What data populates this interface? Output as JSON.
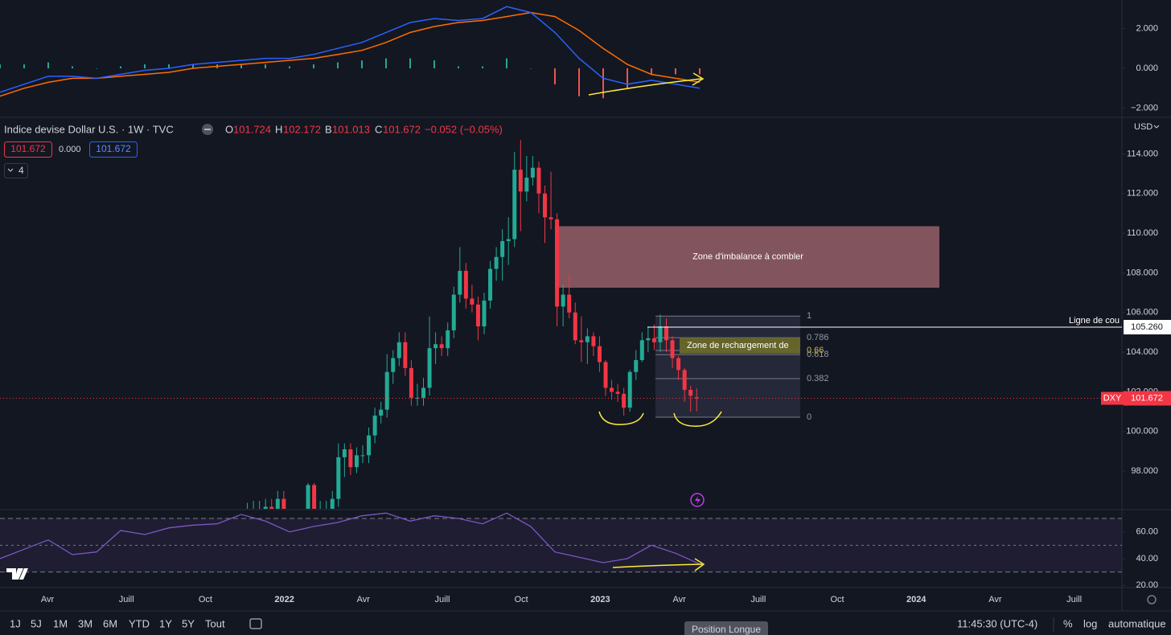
{
  "header": {
    "symbol": "Indice devise Dollar U.S. · 1W · TVC",
    "o_label": "O",
    "h_label": "H",
    "l_label": "B",
    "c_label": "C",
    "change": "−0.052 (−0.05%)",
    "zero_badge": "0.000",
    "indicator_count": "4",
    "currency": "USD"
  },
  "toolbar": {
    "ranges": [
      "1J",
      "5J",
      "1M",
      "3M",
      "6M",
      "YTD",
      "1Y",
      "5Y",
      "Tout"
    ],
    "time": "11:45:30 (UTC-4)",
    "percent": "%",
    "log": "log",
    "auto": "automatique",
    "tooltip": "Position Longue"
  },
  "chart_data": [
    {
      "type": "macd",
      "macd": [
        -1.2,
        -0.8,
        -0.4,
        -0.4,
        -0.5,
        -0.3,
        -0.1,
        0.0,
        0.2,
        0.3,
        0.4,
        0.5,
        0.5,
        0.7,
        1.0,
        1.3,
        1.8,
        2.3,
        2.5,
        2.4,
        2.5,
        3.1,
        2.8,
        1.8,
        0.5,
        -0.5,
        -0.8,
        -0.6,
        -0.8,
        -1.0
      ],
      "signal": [
        -1.4,
        -1.0,
        -0.7,
        -0.5,
        -0.5,
        -0.4,
        -0.3,
        -0.2,
        0.0,
        0.1,
        0.2,
        0.3,
        0.4,
        0.5,
        0.7,
        0.9,
        1.3,
        1.8,
        2.1,
        2.3,
        2.4,
        2.6,
        2.8,
        2.6,
        1.9,
        1.0,
        0.2,
        -0.3,
        -0.5,
        -0.7
      ],
      "histogram": [
        0.2,
        0.2,
        0.3,
        0.1,
        0.0,
        0.1,
        0.2,
        0.2,
        0.2,
        0.2,
        0.2,
        0.2,
        0.1,
        0.2,
        0.3,
        0.4,
        0.5,
        0.5,
        0.4,
        0.1,
        0.1,
        0.5,
        0.0,
        -0.8,
        -1.4,
        -1.5,
        -1.0,
        -0.3,
        -0.3,
        -0.3
      ],
      "macd_color": "#2962ff",
      "signal_color": "#ff6d00",
      "up_color": "#26a69a",
      "down_color": "#ef5350",
      "ylim": [
        -2.42,
        3.43
      ],
      "yticks": [
        {
          "value": 2,
          "label": "2.000"
        },
        {
          "value": 0,
          "label": "0.000"
        },
        {
          "value": -2,
          "label": "−2.000"
        }
      ]
    },
    {
      "type": "candlestick",
      "open": [
        94.9,
        95.1,
        96.0,
        96.1,
        96.1,
        96.2,
        96.0,
        96.6,
        95.7,
        95.7,
        95.2,
        95.6,
        97.3,
        95.5,
        96.1,
        96.1,
        96.6,
        98.7,
        99.1,
        98.2,
        98.8,
        98.8,
        99.8,
        100.8,
        101.1,
        103.0,
        103.7,
        104.5,
        103.2,
        101.7,
        101.7,
        102.2,
        104.2,
        104.4,
        104.2,
        105.1,
        106.9,
        108.1,
        106.7,
        106.4,
        105.3,
        106.6,
        108.2,
        108.8,
        109.6,
        109.7,
        113.2,
        112.1,
        112.8,
        113.3,
        112.0,
        110.8,
        110.7,
        106.3,
        106.9,
        106.0,
        104.6,
        104.5,
        104.8,
        104.3,
        103.5,
        102.2,
        102.0,
        101.9,
        101.2,
        103.0,
        103.6,
        104.6,
        104.7,
        104.5,
        105.3,
        104.6,
        103.7,
        103.1,
        102.1,
        101.724
      ],
      "high": [
        95.5,
        96.4,
        96.5,
        96.5,
        96.6,
        96.6,
        97.0,
        97.0,
        96.1,
        96.1,
        96.0,
        97.4,
        97.4,
        96.5,
        96.5,
        97.0,
        99.4,
        99.4,
        99.4,
        99.2,
        99.3,
        100.2,
        101.2,
        101.5,
        103.9,
        104.1,
        105.0,
        105.0,
        103.6,
        102.4,
        102.7,
        105.8,
        105.0,
        104.8,
        105.5,
        107.3,
        109.3,
        108.5,
        107.4,
        106.8,
        107.0,
        108.6,
        109.3,
        110.2,
        110.8,
        114.1,
        114.7,
        113.9,
        113.9,
        113.6,
        112.4,
        113.1,
        111.0,
        107.4,
        107.9,
        106.5,
        105.8,
        105.2,
        105.0,
        104.8,
        103.6,
        102.6,
        102.4,
        102.2,
        103.1,
        104.1,
        105.0,
        105.3,
        105.4,
        105.9,
        105.7,
        104.8,
        103.8,
        103.2,
        102.3,
        102.172
      ],
      "low": [
        94.5,
        94.7,
        95.6,
        95.7,
        95.7,
        95.6,
        95.6,
        95.3,
        95.3,
        94.6,
        94.8,
        95.2,
        95.1,
        95.1,
        95.7,
        95.7,
        96.2,
        97.7,
        97.8,
        97.9,
        98.4,
        98.4,
        99.4,
        100.4,
        100.7,
        102.4,
        103.3,
        102.8,
        101.3,
        101.3,
        101.3,
        101.8,
        103.4,
        103.8,
        103.8,
        104.7,
        106.5,
        106.2,
        106.0,
        104.6,
        104.9,
        106.2,
        107.6,
        107.6,
        108.4,
        109.3,
        110.1,
        111.6,
        112.4,
        111.0,
        109.5,
        110.2,
        105.3,
        105.3,
        105.7,
        104.4,
        103.5,
        103.4,
        103.8,
        103.0,
        101.8,
        101.6,
        101.5,
        100.8,
        101.0,
        102.6,
        103.5,
        104.0,
        104.1,
        104.0,
        104.0,
        103.2,
        102.6,
        101.5,
        101.0,
        101.013
      ],
      "close": [
        95.1,
        96.0,
        96.1,
        96.1,
        96.2,
        96.0,
        96.6,
        95.7,
        95.7,
        95.2,
        95.6,
        97.3,
        95.5,
        96.1,
        96.1,
        96.6,
        98.7,
        99.1,
        98.2,
        98.8,
        98.8,
        99.8,
        100.8,
        101.1,
        103.0,
        103.7,
        104.5,
        103.2,
        101.7,
        101.7,
        102.2,
        104.2,
        104.4,
        104.2,
        105.1,
        106.9,
        108.1,
        106.7,
        106.4,
        105.3,
        106.6,
        108.2,
        108.8,
        109.6,
        109.7,
        113.2,
        112.1,
        112.8,
        113.3,
        112.0,
        110.8,
        110.7,
        106.3,
        106.9,
        106.0,
        104.6,
        104.5,
        104.8,
        104.3,
        103.5,
        102.2,
        102.0,
        101.9,
        101.2,
        103.0,
        103.6,
        104.6,
        104.7,
        104.5,
        105.3,
        104.6,
        103.7,
        103.1,
        102.1,
        101.8,
        101.672
      ],
      "up_color": "#22ab94",
      "down_color": "#f23645",
      "ylim": [
        96.1,
        115.8
      ],
      "yticks": [
        {
          "value": 114,
          "label": "114.000"
        },
        {
          "value": 112,
          "label": "112.000"
        },
        {
          "value": 110,
          "label": "110.000"
        },
        {
          "value": 108,
          "label": "108.000"
        },
        {
          "value": 106,
          "label": "106.000"
        },
        {
          "value": 104,
          "label": "104.000"
        },
        {
          "value": 102,
          "label": "102.000"
        },
        {
          "value": 100,
          "label": "100.000"
        },
        {
          "value": 98,
          "label": "98.000"
        }
      ],
      "time_labels": [
        "Avr",
        "Juill",
        "Oct",
        "2022",
        "Avr",
        "Juill",
        "Oct",
        "2023",
        "Avr",
        "Juill",
        "Oct",
        "2024",
        "Avr",
        "Juill"
      ],
      "last_price_label": "DXY",
      "imbalance_zone": {
        "text": "Zone d'imbalance à combler",
        "top": 110.35,
        "bottom": 107.25,
        "color": "#82545e"
      },
      "fibonacci": {
        "top": 105.82,
        "bottom": 100.72,
        "levels": [
          1,
          0.786,
          0.66,
          0.618,
          0.382,
          0
        ]
      },
      "reload_zone": {
        "text": "Zone de rechargement de",
        "top": 104.73,
        "bottom": 103.92,
        "color": "#6b6a2a"
      },
      "neckline": {
        "text": "Ligne de cou",
        "price": {
          "value": 105.26,
          "label": "105.260"
        }
      }
    },
    {
      "type": "rsi",
      "values": [
        40,
        47,
        54,
        43,
        45,
        61,
        58,
        63,
        65,
        66,
        73,
        68,
        60,
        64,
        67,
        72,
        74,
        68,
        72,
        70,
        66,
        74,
        64,
        45,
        41,
        37,
        40,
        50,
        44,
        36
      ],
      "color": "#7e57c2",
      "ylim": [
        19,
        76
      ],
      "yticks": [
        {
          "value": 60,
          "label": "60.00"
        },
        {
          "value": 40,
          "label": "40.00"
        },
        {
          "value": 20,
          "label": "20.00"
        }
      ],
      "bands": [
        70,
        50,
        30
      ]
    }
  ]
}
